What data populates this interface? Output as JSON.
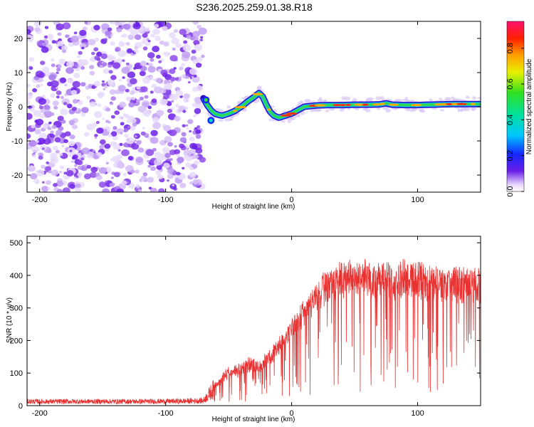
{
  "title": "S236.2025.259.01.38.R18",
  "colors": {
    "snr_line": "#e83232",
    "frame": "#000000",
    "background": "#ffffff"
  },
  "chart_data": [
    {
      "type": "heatmap",
      "name": "spectrogram",
      "title": "S236.2025.259.01.38.R18",
      "xlabel": "Height of straight line (km)",
      "ylabel": "Frequency (Hz)",
      "xlim": [
        -210,
        150
      ],
      "ylim": [
        -25,
        25
      ],
      "xticks": [
        -200,
        -100,
        0,
        100
      ],
      "yticks": [
        -20,
        -10,
        0,
        10,
        20
      ],
      "noise_region_x": [
        -210,
        -70
      ],
      "signal_ridge": {
        "x": [
          -70,
          -67,
          -64,
          -61,
          -58,
          -55,
          -50,
          -45,
          -40,
          -35,
          -30,
          -26,
          -23,
          -20,
          -17,
          -14,
          -10,
          -5,
          0,
          5,
          10,
          20,
          30,
          40,
          50,
          60,
          70,
          75,
          80,
          90,
          100,
          110,
          120,
          130,
          140,
          150
        ],
        "y": [
          2.5,
          0.5,
          -1.0,
          -2.0,
          -2.4,
          -2.6,
          -2.0,
          -1.2,
          0,
          1.5,
          2.8,
          4.0,
          3.0,
          0.5,
          -1.5,
          -2.6,
          -3.2,
          -2.6,
          -2.0,
          -1.0,
          0,
          0.4,
          0.5,
          0.5,
          0.6,
          0.6,
          0.7,
          1.0,
          0.6,
          0.5,
          0.5,
          0.6,
          0.7,
          0.8,
          0.8,
          0.8
        ]
      },
      "colorbar": {
        "label": "Normalized spectral amplitude",
        "range": [
          0,
          0.95
        ],
        "ticks": [
          "0.0",
          "0.2",
          "0.4",
          "0.6",
          "0.8"
        ]
      }
    },
    {
      "type": "line",
      "name": "snr",
      "xlabel": "Height of straight line (km)",
      "ylabel": "SNR (10 * v/v)",
      "xlim": [
        -210,
        150
      ],
      "ylim": [
        0,
        520
      ],
      "xticks": [
        -200,
        -100,
        0,
        100
      ],
      "yticks": [
        0,
        100,
        200,
        300,
        400,
        500
      ],
      "series": [
        {
          "name": "SNR",
          "x": [
            -210,
            -180,
            -150,
            -120,
            -90,
            -70,
            -60,
            -55,
            -50,
            -45,
            -40,
            -35,
            -30,
            -25,
            -20,
            -15,
            -10,
            -5,
            0,
            5,
            10,
            15,
            20,
            25,
            30,
            40,
            50,
            60,
            70,
            80,
            90,
            100,
            110,
            120,
            130,
            140,
            150
          ],
          "values": [
            15,
            15,
            15,
            15,
            16,
            18,
            70,
            100,
            115,
            120,
            125,
            140,
            150,
            130,
            165,
            175,
            210,
            235,
            265,
            300,
            320,
            355,
            385,
            405,
            420,
            440,
            445,
            445,
            440,
            440,
            445,
            440,
            430,
            425,
            425,
            420,
            420
          ],
          "jitter_below": 0.55
        }
      ]
    }
  ]
}
